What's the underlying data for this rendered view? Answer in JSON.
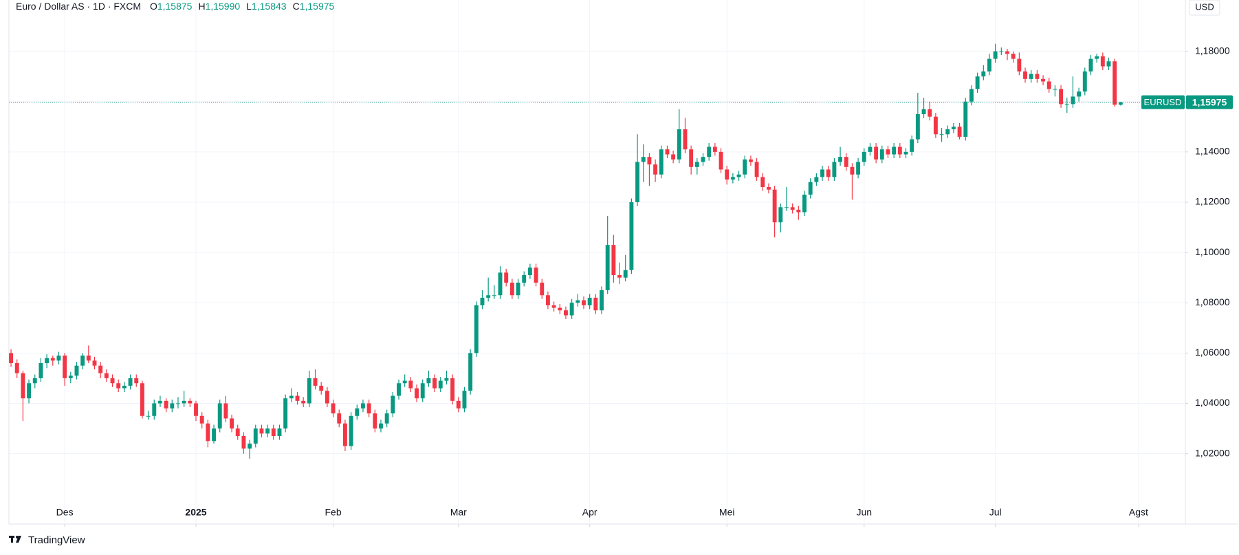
{
  "chart_data": {
    "type": "candlestick",
    "title": "Euro / Dollar AS · 1D · FXCM",
    "ohlc_labels": [
      {
        "key": "O",
        "value": "1,15875"
      },
      {
        "key": "H",
        "value": "1,15990"
      },
      {
        "key": "L",
        "value": "1,15843"
      },
      {
        "key": "C",
        "value": "1,15975"
      }
    ],
    "currency": "USD",
    "brand": "TradingView",
    "up_color": "#089981",
    "down_color": "#f23645",
    "grid": true,
    "ylim": [
      0.992,
      1.2004
    ],
    "yticks": [
      {
        "value": 1.02,
        "label": "1,02000"
      },
      {
        "value": 1.04,
        "label": "1,04000"
      },
      {
        "value": 1.06,
        "label": "1,06000"
      },
      {
        "value": 1.08,
        "label": "1,08000"
      },
      {
        "value": 1.1,
        "label": "1,10000"
      },
      {
        "value": 1.12,
        "label": "1,12000"
      },
      {
        "value": 1.14,
        "label": "1,14000"
      },
      {
        "value": 1.16,
        "label": "1,16000"
      },
      {
        "value": 1.18,
        "label": "1,18000"
      }
    ],
    "xlim": [
      -0.35,
      196.85
    ],
    "xticks": [
      {
        "value": 9,
        "label": "Des"
      },
      {
        "value": 31,
        "label": "2025"
      },
      {
        "value": 54,
        "label": "Feb"
      },
      {
        "value": 75,
        "label": "Mar"
      },
      {
        "value": 97,
        "label": "Apr"
      },
      {
        "value": 120,
        "label": "Mei"
      },
      {
        "value": 143,
        "label": "Jun"
      },
      {
        "value": 165,
        "label": "Jul"
      },
      {
        "value": 189,
        "label": "Agst"
      }
    ],
    "last_price": {
      "value": 1.15975,
      "symbol": "EURUSD",
      "label": "1,15975"
    },
    "ohlc": [
      [
        1.06,
        1.0615,
        1.0545,
        1.056
      ],
      [
        1.056,
        1.0575,
        1.05,
        1.052
      ],
      [
        1.052,
        1.053,
        1.033,
        1.042
      ],
      [
        1.042,
        1.0495,
        1.04,
        1.048
      ],
      [
        1.048,
        1.0515,
        1.046,
        1.05
      ],
      [
        1.05,
        1.058,
        1.0485,
        1.056
      ],
      [
        1.056,
        1.0595,
        1.054,
        1.058
      ],
      [
        1.058,
        1.059,
        1.055,
        1.057
      ],
      [
        1.057,
        1.0605,
        1.0555,
        1.059
      ],
      [
        1.059,
        1.06,
        1.047,
        1.05
      ],
      [
        1.05,
        1.0525,
        1.048,
        1.051
      ],
      [
        1.051,
        1.0565,
        1.0495,
        1.055
      ],
      [
        1.055,
        1.06,
        1.0535,
        1.059
      ],
      [
        1.059,
        1.063,
        1.056,
        1.057
      ],
      [
        1.057,
        1.0585,
        1.0535,
        1.055
      ],
      [
        1.055,
        1.0565,
        1.05,
        1.052
      ],
      [
        1.052,
        1.0535,
        1.0485,
        1.05
      ],
      [
        1.05,
        1.0515,
        1.0465,
        1.048
      ],
      [
        1.048,
        1.0495,
        1.0445,
        1.046
      ],
      [
        1.046,
        1.0485,
        1.0445,
        1.047
      ],
      [
        1.047,
        1.0515,
        1.0455,
        1.05
      ],
      [
        1.05,
        1.0515,
        1.0465,
        1.048
      ],
      [
        1.048,
        1.049,
        1.034,
        1.035
      ],
      [
        1.035,
        1.037,
        1.0335,
        1.035
      ],
      [
        1.035,
        1.0415,
        1.0335,
        1.04
      ],
      [
        1.04,
        1.043,
        1.0385,
        1.041
      ],
      [
        1.041,
        1.042,
        1.0365,
        1.038
      ],
      [
        1.038,
        1.0415,
        1.0365,
        1.04
      ],
      [
        1.04,
        1.0425,
        1.038,
        1.04
      ],
      [
        1.04,
        1.045,
        1.0385,
        1.041
      ],
      [
        1.041,
        1.042,
        1.0385,
        1.04
      ],
      [
        1.04,
        1.041,
        1.033,
        1.035
      ],
      [
        1.035,
        1.0365,
        1.03,
        1.032
      ],
      [
        1.032,
        1.0335,
        1.0225,
        1.025
      ],
      [
        1.025,
        1.0315,
        1.024,
        1.03
      ],
      [
        1.03,
        1.0415,
        1.0285,
        1.04
      ],
      [
        1.04,
        1.043,
        1.0325,
        1.034
      ],
      [
        1.034,
        1.0355,
        1.0285,
        1.03
      ],
      [
        1.03,
        1.0315,
        1.0255,
        1.027
      ],
      [
        1.027,
        1.0285,
        1.02,
        1.022
      ],
      [
        1.022,
        1.0255,
        1.018,
        1.024
      ],
      [
        1.024,
        1.0315,
        1.0225,
        1.03
      ],
      [
        1.03,
        1.0315,
        1.0265,
        1.028
      ],
      [
        1.028,
        1.0315,
        1.0265,
        1.03
      ],
      [
        1.03,
        1.0315,
        1.0255,
        1.027
      ],
      [
        1.027,
        1.0315,
        1.0255,
        1.03
      ],
      [
        1.03,
        1.0435,
        1.0285,
        1.042
      ],
      [
        1.042,
        1.046,
        1.0405,
        1.043
      ],
      [
        1.043,
        1.0445,
        1.0395,
        1.041
      ],
      [
        1.041,
        1.0425,
        1.0385,
        1.04
      ],
      [
        1.04,
        1.053,
        1.0385,
        1.05
      ],
      [
        1.05,
        1.0535,
        1.0455,
        1.047
      ],
      [
        1.047,
        1.0485,
        1.0435,
        1.045
      ],
      [
        1.045,
        1.0465,
        1.0385,
        1.04
      ],
      [
        1.04,
        1.0415,
        1.0345,
        1.036
      ],
      [
        1.036,
        1.0375,
        1.0305,
        1.032
      ],
      [
        1.032,
        1.0335,
        1.021,
        1.023
      ],
      [
        1.023,
        1.0365,
        1.0215,
        1.035
      ],
      [
        1.035,
        1.0395,
        1.0335,
        1.038
      ],
      [
        1.038,
        1.0415,
        1.0365,
        1.04
      ],
      [
        1.04,
        1.0415,
        1.0345,
        1.036
      ],
      [
        1.036,
        1.0375,
        1.0285,
        1.03
      ],
      [
        1.03,
        1.0335,
        1.0285,
        1.032
      ],
      [
        1.032,
        1.0375,
        1.0305,
        1.036
      ],
      [
        1.036,
        1.0445,
        1.0345,
        1.043
      ],
      [
        1.043,
        1.0495,
        1.0415,
        1.048
      ],
      [
        1.048,
        1.0515,
        1.0465,
        1.049
      ],
      [
        1.049,
        1.0505,
        1.0445,
        1.046
      ],
      [
        1.046,
        1.0475,
        1.0405,
        1.042
      ],
      [
        1.042,
        1.0495,
        1.0405,
        1.048
      ],
      [
        1.048,
        1.053,
        1.0465,
        1.05
      ],
      [
        1.05,
        1.0515,
        1.0445,
        1.046
      ],
      [
        1.046,
        1.0505,
        1.0445,
        1.049
      ],
      [
        1.049,
        1.053,
        1.0475,
        1.05
      ],
      [
        1.05,
        1.0515,
        1.0395,
        1.041
      ],
      [
        1.041,
        1.0425,
        1.0365,
        1.038
      ],
      [
        1.038,
        1.0465,
        1.0365,
        1.045
      ],
      [
        1.045,
        1.0615,
        1.0435,
        1.06
      ],
      [
        1.06,
        1.0805,
        1.0585,
        1.079
      ],
      [
        1.079,
        1.085,
        1.0775,
        1.082
      ],
      [
        1.082,
        1.09,
        1.0805,
        1.083
      ],
      [
        1.083,
        1.087,
        1.0815,
        1.083
      ],
      [
        1.083,
        1.0945,
        1.0815,
        1.092
      ],
      [
        1.092,
        1.0935,
        1.0865,
        1.088
      ],
      [
        1.088,
        1.0895,
        1.0815,
        1.083
      ],
      [
        1.083,
        1.0895,
        1.0815,
        1.088
      ],
      [
        1.088,
        1.0925,
        1.0865,
        1.091
      ],
      [
        1.091,
        1.0955,
        1.0895,
        1.094
      ],
      [
        1.094,
        1.0955,
        1.0865,
        1.088
      ],
      [
        1.088,
        1.0895,
        1.0815,
        1.083
      ],
      [
        1.083,
        1.0845,
        1.0775,
        1.079
      ],
      [
        1.079,
        1.0805,
        1.0765,
        1.078
      ],
      [
        1.078,
        1.0795,
        1.0755,
        1.077
      ],
      [
        1.077,
        1.0785,
        1.0735,
        1.075
      ],
      [
        1.075,
        1.0815,
        1.0735,
        1.08
      ],
      [
        1.08,
        1.0835,
        1.0785,
        1.081
      ],
      [
        1.081,
        1.0825,
        1.0775,
        1.079
      ],
      [
        1.079,
        1.0835,
        1.0775,
        1.082
      ],
      [
        1.082,
        1.0835,
        1.0755,
        1.077
      ],
      [
        1.077,
        1.0865,
        1.0755,
        1.085
      ],
      [
        1.085,
        1.1145,
        1.0835,
        1.103
      ],
      [
        1.103,
        1.107,
        1.088,
        1.091
      ],
      [
        1.091,
        1.096,
        1.0875,
        1.09
      ],
      [
        1.09,
        1.099,
        1.0885,
        1.093
      ],
      [
        1.093,
        1.1215,
        1.0915,
        1.12
      ],
      [
        1.12,
        1.147,
        1.1185,
        1.136
      ],
      [
        1.136,
        1.143,
        1.128,
        1.138
      ],
      [
        1.138,
        1.1395,
        1.1265,
        1.135
      ],
      [
        1.135,
        1.137,
        1.128,
        1.131
      ],
      [
        1.131,
        1.1425,
        1.1295,
        1.141
      ],
      [
        1.141,
        1.1425,
        1.1375,
        1.139
      ],
      [
        1.139,
        1.1405,
        1.1355,
        1.137
      ],
      [
        1.137,
        1.157,
        1.1355,
        1.149
      ],
      [
        1.149,
        1.1535,
        1.1395,
        1.141
      ],
      [
        1.141,
        1.1425,
        1.131,
        1.134
      ],
      [
        1.134,
        1.1375,
        1.131,
        1.136
      ],
      [
        1.136,
        1.1395,
        1.1345,
        1.138
      ],
      [
        1.138,
        1.1435,
        1.1365,
        1.142
      ],
      [
        1.142,
        1.1435,
        1.1385,
        1.14
      ],
      [
        1.14,
        1.1415,
        1.1315,
        1.133
      ],
      [
        1.133,
        1.1345,
        1.127,
        1.129
      ],
      [
        1.129,
        1.1315,
        1.1275,
        1.13
      ],
      [
        1.13,
        1.1325,
        1.1285,
        1.131
      ],
      [
        1.131,
        1.1385,
        1.1295,
        1.137
      ],
      [
        1.137,
        1.1385,
        1.1345,
        1.136
      ],
      [
        1.136,
        1.1375,
        1.1285,
        1.13
      ],
      [
        1.13,
        1.1315,
        1.1245,
        1.126
      ],
      [
        1.126,
        1.1275,
        1.1235,
        1.125
      ],
      [
        1.125,
        1.1265,
        1.106,
        1.112
      ],
      [
        1.112,
        1.1195,
        1.108,
        1.118
      ],
      [
        1.118,
        1.126,
        1.1165,
        1.118
      ],
      [
        1.118,
        1.1195,
        1.1155,
        1.117
      ],
      [
        1.117,
        1.1185,
        1.113,
        1.116
      ],
      [
        1.116,
        1.1245,
        1.1145,
        1.123
      ],
      [
        1.123,
        1.1295,
        1.1215,
        1.128
      ],
      [
        1.128,
        1.1315,
        1.1265,
        1.13
      ],
      [
        1.13,
        1.1345,
        1.1285,
        1.133
      ],
      [
        1.133,
        1.1345,
        1.1285,
        1.13
      ],
      [
        1.13,
        1.1375,
        1.1285,
        1.136
      ],
      [
        1.136,
        1.142,
        1.1345,
        1.138
      ],
      [
        1.138,
        1.1395,
        1.1325,
        1.134
      ],
      [
        1.134,
        1.1355,
        1.121,
        1.131
      ],
      [
        1.131,
        1.1375,
        1.1295,
        1.136
      ],
      [
        1.136,
        1.1415,
        1.1345,
        1.14
      ],
      [
        1.14,
        1.1435,
        1.1385,
        1.142
      ],
      [
        1.142,
        1.1435,
        1.1355,
        1.137
      ],
      [
        1.137,
        1.1425,
        1.1355,
        1.141
      ],
      [
        1.141,
        1.1425,
        1.1375,
        1.139
      ],
      [
        1.139,
        1.1435,
        1.1375,
        1.142
      ],
      [
        1.142,
        1.1435,
        1.1375,
        1.139
      ],
      [
        1.139,
        1.1415,
        1.1375,
        1.14
      ],
      [
        1.14,
        1.1465,
        1.1385,
        1.145
      ],
      [
        1.145,
        1.1635,
        1.1435,
        1.155
      ],
      [
        1.155,
        1.1615,
        1.1535,
        1.157
      ],
      [
        1.157,
        1.16,
        1.1525,
        1.154
      ],
      [
        1.154,
        1.1555,
        1.1455,
        1.147
      ],
      [
        1.147,
        1.1495,
        1.144,
        1.147
      ],
      [
        1.147,
        1.1505,
        1.1455,
        1.149
      ],
      [
        1.149,
        1.1515,
        1.1475,
        1.15
      ],
      [
        1.15,
        1.1515,
        1.145,
        1.146
      ],
      [
        1.146,
        1.1615,
        1.1445,
        1.16
      ],
      [
        1.16,
        1.1665,
        1.1585,
        1.165
      ],
      [
        1.165,
        1.1715,
        1.1635,
        1.17
      ],
      [
        1.17,
        1.1745,
        1.1685,
        1.172
      ],
      [
        1.172,
        1.179,
        1.1705,
        1.177
      ],
      [
        1.177,
        1.183,
        1.1755,
        1.18
      ],
      [
        1.18,
        1.1815,
        1.1785,
        1.18
      ],
      [
        1.18,
        1.181,
        1.1765,
        1.179
      ],
      [
        1.179,
        1.18,
        1.1755,
        1.177
      ],
      [
        1.177,
        1.1795,
        1.1705,
        1.172
      ],
      [
        1.172,
        1.1735,
        1.1675,
        1.169
      ],
      [
        1.169,
        1.1725,
        1.1675,
        1.171
      ],
      [
        1.171,
        1.1725,
        1.1675,
        1.169
      ],
      [
        1.169,
        1.1705,
        1.1665,
        1.168
      ],
      [
        1.168,
        1.1695,
        1.1635,
        1.165
      ],
      [
        1.165,
        1.1665,
        1.162,
        1.165
      ],
      [
        1.165,
        1.1665,
        1.1575,
        1.159
      ],
      [
        1.159,
        1.1615,
        1.1555,
        1.159
      ],
      [
        1.159,
        1.17,
        1.1575,
        1.162
      ],
      [
        1.162,
        1.1655,
        1.16,
        1.164
      ],
      [
        1.164,
        1.1735,
        1.1625,
        1.172
      ],
      [
        1.172,
        1.1785,
        1.1705,
        1.177
      ],
      [
        1.177,
        1.179,
        1.1755,
        1.178
      ],
      [
        1.178,
        1.1795,
        1.1725,
        1.174
      ],
      [
        1.174,
        1.1775,
        1.1725,
        1.176
      ],
      [
        1.176,
        1.177,
        1.158,
        1.15875
      ],
      [
        1.15875,
        1.1599,
        1.15843,
        1.15975
      ]
    ]
  }
}
